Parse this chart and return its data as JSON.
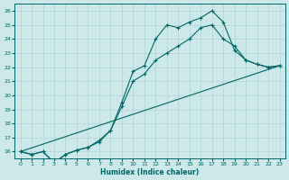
{
  "xlabel": "Humidex (Indice chaleur)",
  "ylabel": "",
  "bg_color": "#cce8e8",
  "grid_color": "#b0d4d4",
  "line_color": "#006666",
  "xlim": [
    -0.5,
    23.5
  ],
  "ylim": [
    15.5,
    26.5
  ],
  "xticks": [
    0,
    1,
    2,
    3,
    4,
    5,
    6,
    7,
    8,
    9,
    10,
    11,
    12,
    13,
    14,
    15,
    16,
    17,
    18,
    19,
    20,
    21,
    22,
    23
  ],
  "yticks": [
    16,
    17,
    18,
    19,
    20,
    21,
    22,
    23,
    24,
    25,
    26
  ],
  "line1_x": [
    0,
    1,
    2,
    3,
    4,
    5,
    6,
    7,
    8,
    9,
    10,
    11,
    12,
    13,
    14,
    15,
    16,
    17,
    18,
    19,
    20,
    21,
    22,
    23
  ],
  "line1_y": [
    16.0,
    15.8,
    16.0,
    15.2,
    15.8,
    16.1,
    16.3,
    16.7,
    17.5,
    19.5,
    21.7,
    22.1,
    24.0,
    25.0,
    24.8,
    25.2,
    25.5,
    26.0,
    25.2,
    23.2,
    22.5,
    22.2,
    22.0,
    22.1
  ],
  "line2_x": [
    0,
    1,
    2,
    3,
    4,
    5,
    6,
    7,
    8,
    9,
    10,
    11,
    12,
    13,
    14,
    15,
    16,
    17,
    18,
    19,
    20,
    21,
    22,
    23
  ],
  "line2_y": [
    16.0,
    15.8,
    16.0,
    15.2,
    15.8,
    16.1,
    16.3,
    16.8,
    17.5,
    19.2,
    21.0,
    21.5,
    22.5,
    23.0,
    23.5,
    24.0,
    24.8,
    25.0,
    24.0,
    23.5,
    22.5,
    22.2,
    22.0,
    22.1
  ],
  "line3_x": [
    0,
    23
  ],
  "line3_y": [
    16.0,
    22.1
  ]
}
